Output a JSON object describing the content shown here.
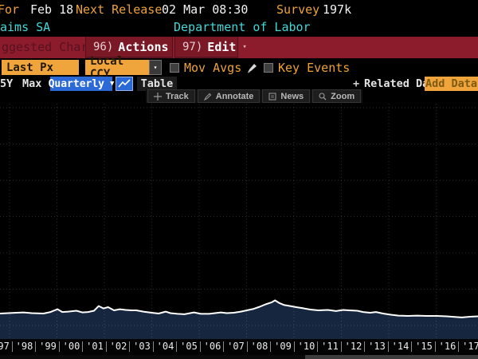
{
  "header": {
    "for_label": "For",
    "for_value": "Feb 18",
    "next_release_label": "Next Release",
    "next_release_value": "02 Mar 08:30",
    "survey_label": "Survey",
    "survey_value": "197k",
    "security_name": "aims SA",
    "source_name": "Department of Labor"
  },
  "red_toolbar": {
    "suggested_charts_label": "ggested Charts",
    "actions_shortcut": "96)",
    "actions_label": "Actions",
    "edit_shortcut": "97)",
    "edit_label": "Edit"
  },
  "controls": {
    "last_px_label": "Last Px",
    "currency_label": "Local CCY",
    "mov_avgs_label": "Mov Avgs",
    "key_events_label": "Key Events"
  },
  "chart_header": {
    "range_5y_label": "5Y",
    "range_max_label": "Max",
    "periodicity_label": "Quarterly",
    "table_label": "Table",
    "related_data_label": "Related Dat",
    "add_data_label": "Add Data"
  },
  "chart_tools": [
    "Track",
    "Annotate",
    "News",
    "Zoom"
  ],
  "icons": {
    "caret_down": "▾",
    "caret_down_large": "▼",
    "plus": "+"
  },
  "colors": {
    "amber": "#f0a43c",
    "orange_text": "#eea236",
    "cyan_text": "#45d7d7",
    "red_bar": "#8c1c2c",
    "blue_button": "#2a69d6",
    "chart_fill": "#15263e",
    "chart_line": "#ffffff"
  },
  "chart_data": {
    "type": "area",
    "title": "",
    "legend": "none",
    "grid": "dotted",
    "y_axis_labels_visible": false,
    "x_range_years": [
      1997,
      2017.35
    ],
    "x_tick_labels": [
      "'97",
      "'98",
      "'99",
      "'00",
      "'01",
      "'02",
      "'03",
      "'04",
      "'05",
      "'06",
      "'07",
      "'08",
      "'09",
      "'10",
      "'11",
      "'12",
      "'13",
      "'14",
      "'15",
      "'16",
      "'17"
    ],
    "series": [
      {
        "name": "aims SA",
        "unit_estimate": "thousands of claims (estimated, y-axis cropped)",
        "points": [
          [
            1997.0,
            320
          ],
          [
            1997.35,
            330
          ],
          [
            1997.7,
            340
          ],
          [
            1998.0,
            350
          ],
          [
            1998.35,
            330
          ],
          [
            1998.85,
            320
          ],
          [
            1999.15,
            360
          ],
          [
            1999.45,
            435
          ],
          [
            1999.65,
            360
          ],
          [
            1999.9,
            370
          ],
          [
            2000.25,
            395
          ],
          [
            2000.5,
            350
          ],
          [
            2000.75,
            360
          ],
          [
            2001.0,
            395
          ],
          [
            2001.2,
            520
          ],
          [
            2001.4,
            455
          ],
          [
            2001.6,
            490
          ],
          [
            2001.85,
            405
          ],
          [
            2002.1,
            435
          ],
          [
            2002.35,
            415
          ],
          [
            2002.6,
            405
          ],
          [
            2002.8,
            405
          ],
          [
            2003.1,
            370
          ],
          [
            2003.45,
            340
          ],
          [
            2003.75,
            320
          ],
          [
            2004.05,
            370
          ],
          [
            2004.25,
            330
          ],
          [
            2004.55,
            310
          ],
          [
            2004.85,
            300
          ],
          [
            2005.25,
            350
          ],
          [
            2005.55,
            310
          ],
          [
            2005.9,
            310
          ],
          [
            2006.15,
            330
          ],
          [
            2006.4,
            350
          ],
          [
            2006.65,
            330
          ],
          [
            2006.95,
            340
          ],
          [
            2007.25,
            370
          ],
          [
            2007.5,
            405
          ],
          [
            2007.8,
            445
          ],
          [
            2008.05,
            500
          ],
          [
            2008.3,
            565
          ],
          [
            2008.55,
            615
          ],
          [
            2008.7,
            670
          ],
          [
            2008.9,
            595
          ],
          [
            2009.1,
            545
          ],
          [
            2009.35,
            520
          ],
          [
            2009.6,
            490
          ],
          [
            2009.9,
            460
          ],
          [
            2010.2,
            425
          ],
          [
            2010.55,
            405
          ],
          [
            2010.95,
            415
          ],
          [
            2011.3,
            385
          ],
          [
            2011.6,
            415
          ],
          [
            2011.85,
            405
          ],
          [
            2012.2,
            395
          ],
          [
            2012.45,
            360
          ],
          [
            2012.75,
            340
          ],
          [
            2013.0,
            360
          ],
          [
            2013.3,
            320
          ],
          [
            2013.6,
            290
          ],
          [
            2013.95,
            265
          ],
          [
            2014.35,
            255
          ],
          [
            2014.75,
            265
          ],
          [
            2015.15,
            255
          ],
          [
            2015.6,
            255
          ],
          [
            2016.0,
            245
          ],
          [
            2016.4,
            225
          ],
          [
            2016.65,
            215
          ],
          [
            2017.0,
            235
          ],
          [
            2017.35,
            245
          ]
        ]
      }
    ]
  }
}
